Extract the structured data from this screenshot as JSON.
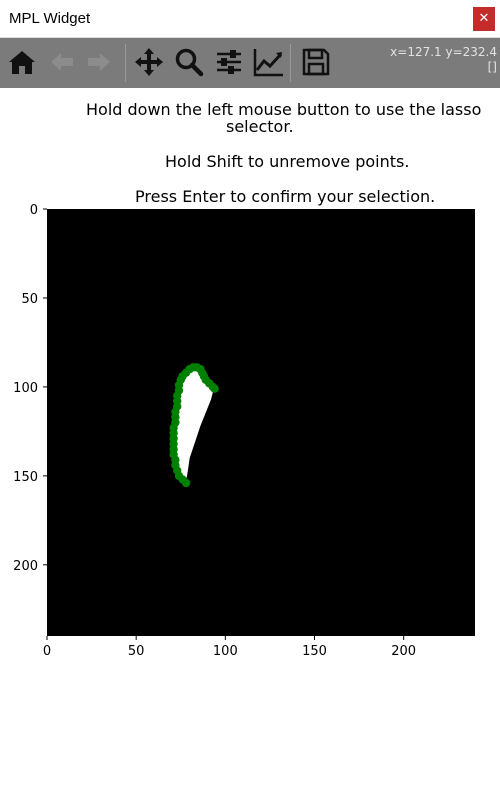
{
  "window": {
    "title": "MPL Widget",
    "close_glyph": "✕"
  },
  "toolbar": {
    "buttons": [
      {
        "name": "home-icon",
        "label": "Home"
      },
      {
        "name": "back-icon",
        "label": "Back"
      },
      {
        "name": "forward-icon",
        "label": "Forward"
      },
      {
        "name": "pan-icon",
        "label": "Pan"
      },
      {
        "name": "zoom-icon",
        "label": "Zoom"
      },
      {
        "name": "configure-subplots-icon",
        "label": "Subplots"
      },
      {
        "name": "edit-axis-icon",
        "label": "Customize"
      },
      {
        "name": "save-icon",
        "label": "Save"
      }
    ],
    "coords_line1": "x=127.1 y=232.4",
    "coords_line2": "[]"
  },
  "instructions": {
    "line1": "Hold down the left mouse button to use the lasso",
    "line2": "selector.",
    "line3": "Hold Shift to unremove points.",
    "line4": "Press Enter to confirm your selection."
  },
  "plot": {
    "x_ticks": [
      "0",
      "50",
      "100",
      "150",
      "200"
    ],
    "y_ticks": [
      "0",
      "50",
      "100",
      "150",
      "200"
    ],
    "x_range": [
      0,
      240
    ],
    "y_range": [
      0,
      240
    ],
    "background_color": "#000000",
    "mask_color": "#ffffff",
    "selection_color": "#008000",
    "mask_shape": [
      [
        82,
        90
      ],
      [
        86,
        90
      ],
      [
        88,
        92
      ],
      [
        90,
        95
      ],
      [
        92,
        99
      ],
      [
        93,
        103
      ],
      [
        92,
        107
      ],
      [
        90,
        112
      ],
      [
        88,
        117
      ],
      [
        86,
        122
      ],
      [
        84,
        128
      ],
      [
        82,
        134
      ],
      [
        80,
        140
      ],
      [
        79,
        147
      ],
      [
        78,
        153
      ],
      [
        76,
        153
      ],
      [
        74,
        149
      ],
      [
        72,
        143
      ],
      [
        71,
        136
      ],
      [
        71,
        128
      ],
      [
        72,
        120
      ],
      [
        73,
        112
      ],
      [
        74,
        104
      ],
      [
        76,
        98
      ],
      [
        79,
        93
      ]
    ],
    "selection_points": [
      [
        78,
        154
      ],
      [
        76,
        152
      ],
      [
        74,
        150
      ],
      [
        73,
        147
      ],
      [
        72,
        144
      ],
      [
        72,
        141
      ],
      [
        71,
        138
      ],
      [
        71,
        135
      ],
      [
        71,
        132
      ],
      [
        71,
        129
      ],
      [
        71,
        126
      ],
      [
        71,
        123
      ],
      [
        72,
        120
      ],
      [
        72,
        117
      ],
      [
        72,
        114
      ],
      [
        73,
        111
      ],
      [
        73,
        108
      ],
      [
        73,
        105
      ],
      [
        74,
        102
      ],
      [
        74,
        99
      ],
      [
        75,
        96
      ],
      [
        76,
        94
      ],
      [
        78,
        92
      ],
      [
        80,
        90
      ],
      [
        82,
        89
      ],
      [
        84,
        89
      ],
      [
        86,
        90
      ],
      [
        87,
        92
      ],
      [
        88,
        94
      ],
      [
        89,
        96
      ],
      [
        91,
        98
      ],
      [
        93,
        100
      ],
      [
        94,
        101
      ]
    ]
  }
}
